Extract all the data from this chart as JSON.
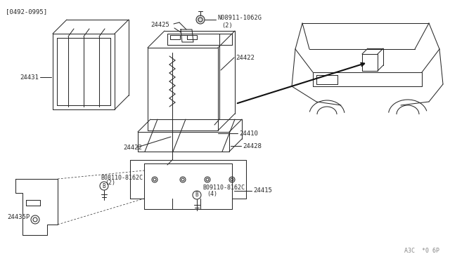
{
  "bg_color": "#ffffff",
  "line_color": "#2a2a2a",
  "text_color": "#2a2a2a",
  "fig_width": 6.4,
  "fig_height": 3.72,
  "dpi": 100,
  "top_left_label": "[0492-0995]",
  "bottom_right_label": "A3C  *0 6P",
  "label_24431": "24431",
  "label_24425": "24425",
  "label_24422a": "24422",
  "label_24422b": "24422",
  "label_24410": "24410",
  "label_24428": "24428",
  "label_24415": "24415",
  "label_24435P": "24435P",
  "label_N08911": "N08911-1062G",
  "label_N08911_qty": "(2)",
  "label_B08110": "B08110-8162C",
  "label_B08110_qty": "(2)",
  "label_B09110": "B09110-8162C",
  "label_B09110_qty": "(4)"
}
